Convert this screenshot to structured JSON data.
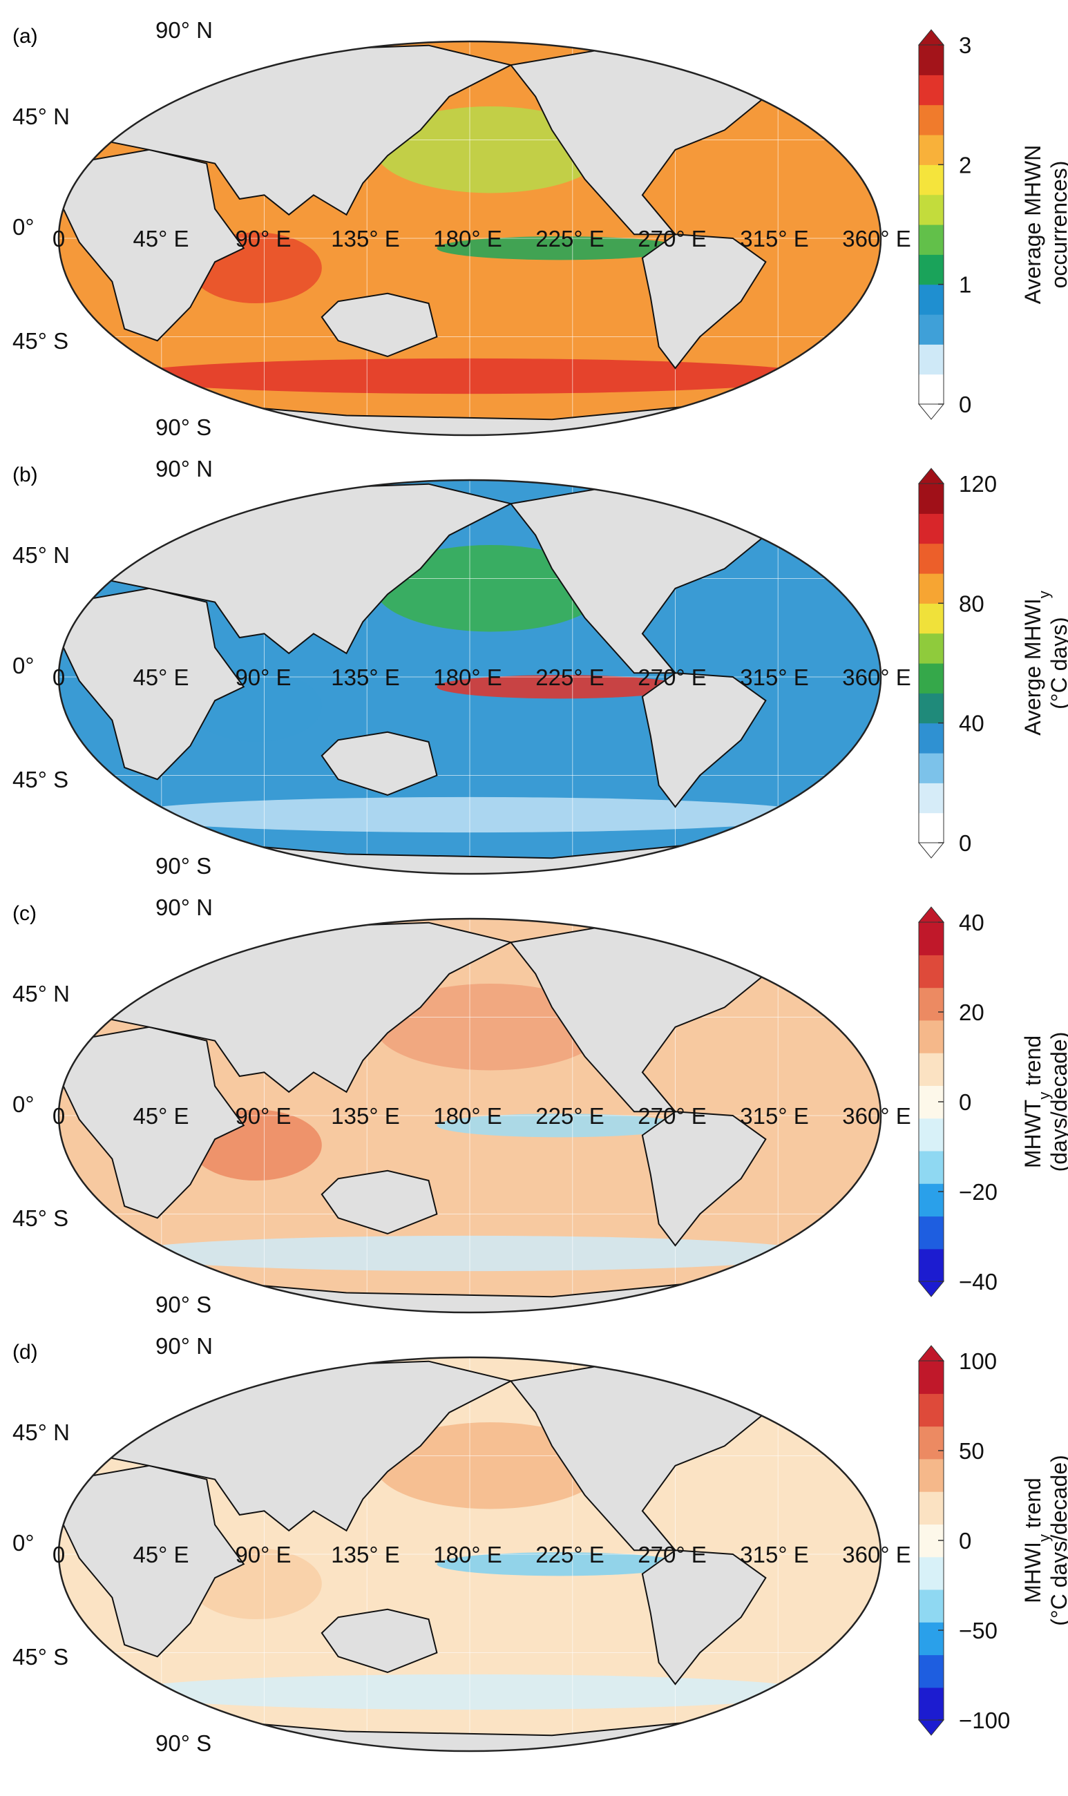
{
  "figure": {
    "lat_labels": {
      "n90": "90° N",
      "n45": "45° N",
      "eq": "0°",
      "s45": "45° S",
      "s90": "90° S"
    },
    "lon_labels": [
      "0",
      "45° E",
      "90° E",
      "135° E",
      "180° E",
      "225° E",
      "270° E",
      "315° E",
      "360° E"
    ],
    "land_color": "#e0e0e0",
    "panels": [
      {
        "label": "(a)",
        "colorbar_title_line1": "Average MHWN",
        "colorbar_title_line2": "occurrences)",
        "ticks": [
          "3",
          "2",
          "1",
          "0"
        ],
        "tick_values": [
          3,
          2,
          1,
          0
        ],
        "range": [
          0,
          3
        ],
        "colormap": [
          "#ffffff",
          "#cfe9f7",
          "#3fa0d8",
          "#1f8fd0",
          "#1aa35a",
          "#62c04a",
          "#c3dc3c",
          "#f5e43c",
          "#f8b13a",
          "#f07b2c",
          "#e2342a",
          "#a3141a"
        ],
        "ocean_base": "#f5993a",
        "patches": [
          {
            "color": "#b8d84a",
            "where": "north-pacific"
          },
          {
            "color": "#21a558",
            "where": "equatorial-pacific"
          },
          {
            "color": "#e84b2a",
            "where": "indian-ocean"
          },
          {
            "color": "#e2342a",
            "where": "southern-ocean"
          },
          {
            "color": "#21a558",
            "where": "arctic"
          }
        ]
      },
      {
        "label": "(b)",
        "colorbar_title_line1": "Averge MHWI",
        "colorbar_title_sub": "y",
        "colorbar_title_line2": "(°C days)",
        "ticks": [
          "120",
          "80",
          "40",
          "0"
        ],
        "tick_values": [
          120,
          80,
          40,
          0
        ],
        "range": [
          0,
          120
        ],
        "colormap": [
          "#ffffff",
          "#d6ecf8",
          "#7cc2ea",
          "#2f91d2",
          "#1f8a7a",
          "#35a84a",
          "#8fcb3c",
          "#f0e13a",
          "#f6a533",
          "#ec5f2a",
          "#d8262a",
          "#a01018"
        ],
        "ocean_base": "#3a9bd4",
        "patches": [
          {
            "color": "#3ab04e",
            "where": "north-pacific"
          },
          {
            "color": "#e2342a",
            "where": "equatorial-pacific"
          },
          {
            "color": "#3a9bd4",
            "where": "indian-ocean"
          },
          {
            "color": "#bfe0f4",
            "where": "southern-ocean"
          },
          {
            "color": "#3ab04e",
            "where": "arctic"
          }
        ]
      },
      {
        "label": "(c)",
        "colorbar_title_line1": "MHWT",
        "colorbar_title_sub": "y",
        "colorbar_title_tail": " trend",
        "colorbar_title_line2": "(days/decade)",
        "ticks": [
          "40",
          "20",
          "0",
          "−20",
          "−40"
        ],
        "tick_values": [
          40,
          20,
          0,
          -20,
          -40
        ],
        "range": [
          -40,
          40
        ],
        "colormap": [
          "#1c1cd0",
          "#1e5ee0",
          "#2aa0ea",
          "#8fd8f2",
          "#d8f1f8",
          "#fdf8ea",
          "#fbe2c2",
          "#f5b88a",
          "#ec8a62",
          "#de4a3a",
          "#c0182a"
        ],
        "ocean_base": "#f7c9a0",
        "patches": [
          {
            "color": "#f0a27a",
            "where": "north-pacific"
          },
          {
            "color": "#9fdcf2",
            "where": "equatorial-pacific"
          },
          {
            "color": "#ec8a62",
            "where": "indian-ocean"
          },
          {
            "color": "#cfeaf7",
            "where": "southern-ocean"
          },
          {
            "color": "#e2453a",
            "where": "arctic"
          }
        ]
      },
      {
        "label": "(d)",
        "colorbar_title_line1": "MHWI",
        "colorbar_title_sub": "y",
        "colorbar_title_tail": " trend",
        "colorbar_title_line2": "(°C days/decade)",
        "ticks": [
          "100",
          "50",
          "0",
          "−50",
          "−100"
        ],
        "tick_values": [
          100,
          50,
          0,
          -50,
          -100
        ],
        "range": [
          -100,
          100
        ],
        "colormap": [
          "#1c1cd0",
          "#1e5ee0",
          "#2aa0ea",
          "#8fd8f2",
          "#d8f1f8",
          "#fdf8ea",
          "#fbe2c2",
          "#f5b88a",
          "#ec8a62",
          "#de4a3a",
          "#c0182a"
        ],
        "ocean_base": "#fbe3c4",
        "patches": [
          {
            "color": "#f5b88a",
            "where": "north-pacific"
          },
          {
            "color": "#7fd0f0",
            "where": "equatorial-pacific"
          },
          {
            "color": "#f8cfa6",
            "where": "indian-ocean"
          },
          {
            "color": "#d6eef8",
            "where": "southern-ocean"
          },
          {
            "color": "#e6503c",
            "where": "arctic"
          }
        ]
      }
    ]
  }
}
